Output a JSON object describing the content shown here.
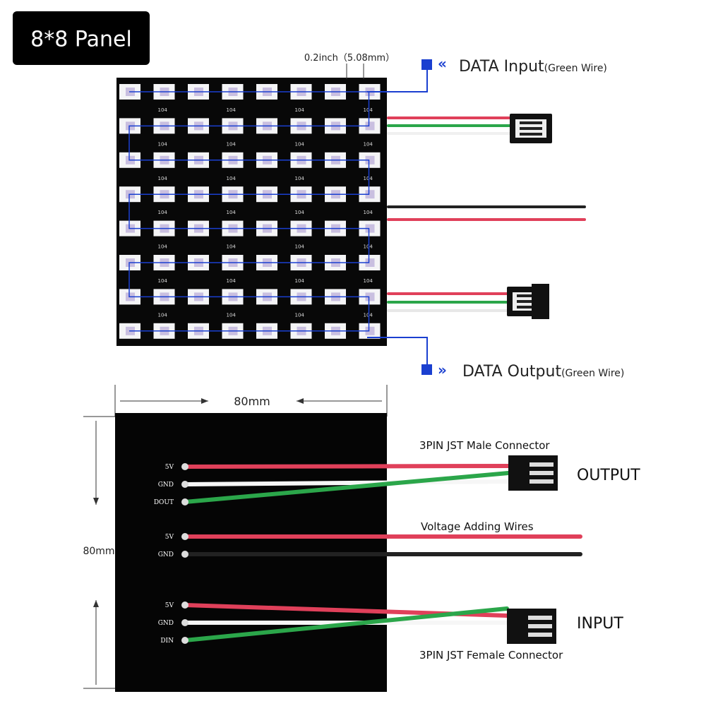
{
  "header": {
    "title": "8*8 Panel"
  },
  "top_panel": {
    "pitch_label": "0.2inch（5.08mm）",
    "pcb_label": "104",
    "input": {
      "label": "DATA Input",
      "note": "(Green Wire)"
    },
    "output": {
      "label": "DATA Output",
      "note": "(Green Wire)"
    }
  },
  "bottom_panel": {
    "width_label": "80mm",
    "height_label": "80mm",
    "connectors": [
      {
        "title": "3PIN JST Male Connector",
        "side": "OUTPUT",
        "pins": [
          "5V",
          "GND",
          "DOUT"
        ]
      },
      {
        "title": "Voltage Adding Wires",
        "pins": [
          "5V",
          "GND"
        ]
      },
      {
        "title": "3PIN JST Female Connector",
        "side": "INPUT",
        "pins": [
          "5V",
          "GND",
          "DIN"
        ]
      }
    ]
  }
}
